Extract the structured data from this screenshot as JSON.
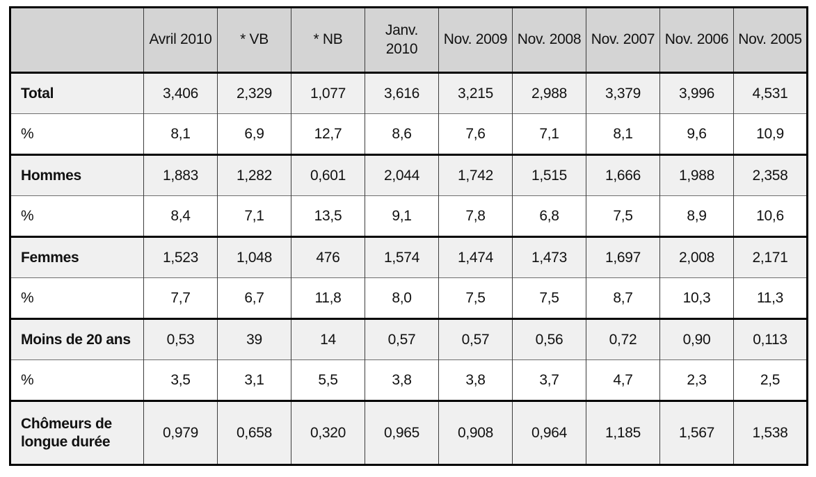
{
  "chart_data": {
    "type": "table",
    "columns": [
      "",
      "Avril 2010",
      "* VB",
      "* NB",
      "Janv. 2010",
      "Nov. 2009",
      "Nov. 2008",
      "Nov. 2007",
      "Nov. 2006",
      "Nov. 2005"
    ],
    "rows": [
      {
        "label": "Total",
        "kind": "category",
        "values": [
          "3,406",
          "2,329",
          "1,077",
          "3,616",
          "3,215",
          "2,988",
          "3,379",
          "3,996",
          "4,531"
        ]
      },
      {
        "label": "%",
        "kind": "percent",
        "values": [
          "8,1",
          "6,9",
          "12,7",
          "8,6",
          "7,6",
          "7,1",
          "8,1",
          "9,6",
          "10,9"
        ]
      },
      {
        "label": "Hommes",
        "kind": "category",
        "values": [
          "1,883",
          "1,282",
          "0,601",
          "2,044",
          "1,742",
          "1,515",
          "1,666",
          "1,988",
          "2,358"
        ]
      },
      {
        "label": "%",
        "kind": "percent",
        "values": [
          "8,4",
          "7,1",
          "13,5",
          "9,1",
          "7,8",
          "6,8",
          "7,5",
          "8,9",
          "10,6"
        ]
      },
      {
        "label": "Femmes",
        "kind": "category",
        "values": [
          "1,523",
          "1,048",
          "476",
          "1,574",
          "1,474",
          "1,473",
          "1,697",
          "2,008",
          "2,171"
        ]
      },
      {
        "label": "%",
        "kind": "percent",
        "values": [
          "7,7",
          "6,7",
          "11,8",
          "8,0",
          "7,5",
          "7,5",
          "8,7",
          "10,3",
          "11,3"
        ]
      },
      {
        "label": "Moins de 20 ans",
        "kind": "category",
        "values": [
          "0,53",
          "39",
          "14",
          "0,57",
          "0,57",
          "0,56",
          "0,72",
          "0,90",
          "0,113"
        ]
      },
      {
        "label": "%",
        "kind": "percent",
        "values": [
          "3,5",
          "3,1",
          "5,5",
          "3,8",
          "3,8",
          "3,7",
          "4,7",
          "2,3",
          "2,5"
        ]
      },
      {
        "label": "Chômeurs de longue durée",
        "kind": "category",
        "values": [
          "0,979",
          "0,658",
          "0,320",
          "0,965",
          "0,908",
          "0,964",
          "1,185",
          "1,567",
          "1,538"
        ]
      }
    ],
    "layout": {
      "header_background": "#d4d4d4",
      "category_row_background": "#f0f0f0",
      "percent_row_background": "#ffffff",
      "border_color": "#000000",
      "grid": "on",
      "decimal_separator": ","
    }
  }
}
